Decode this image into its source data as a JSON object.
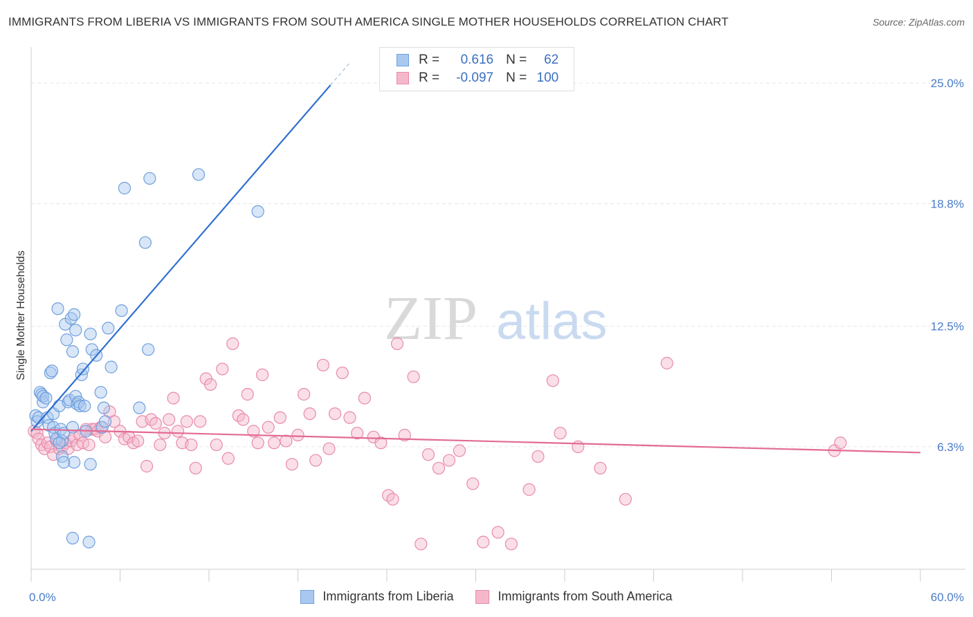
{
  "title": "IMMIGRANTS FROM LIBERIA VS IMMIGRANTS FROM SOUTH AMERICA SINGLE MOTHER HOUSEHOLDS CORRELATION CHART",
  "source": "Source: ZipAtlas.com",
  "watermark": {
    "zip": "ZIP",
    "atlas": "atlas"
  },
  "legend": {
    "r_label": "R =",
    "n_label": "N =",
    "rows": [
      {
        "r": "0.616",
        "n": "62"
      },
      {
        "r": "-0.097",
        "n": "100"
      }
    ]
  },
  "colors": {
    "liberia_fill": "#a9c8f0",
    "liberia_stroke": "#6e9fdc",
    "liberia_line": "#2f6fcf",
    "sa_fill": "#f5b8cb",
    "sa_stroke": "#e88aa9",
    "sa_line": "#e26a94",
    "tick": "#4a7cc9",
    "grid": "#e6e6e6"
  },
  "chart_data": {
    "type": "scatter",
    "title": "IMMIGRANTS FROM LIBERIA VS IMMIGRANTS FROM SOUTH AMERICA SINGLE MOTHER HOUSEHOLDS CORRELATION CHART",
    "xlabel": "",
    "ylabel": "Single Mother Households",
    "xlim": [
      0,
      60
    ],
    "ylim": [
      0,
      26.5
    ],
    "x_tick_labels": [
      "0.0%",
      "60.0%"
    ],
    "y_ticks": [
      6.3,
      12.5,
      18.8,
      25.0
    ],
    "y_tick_labels": [
      "6.3%",
      "12.5%",
      "18.8%",
      "25.0%"
    ],
    "legend_placement": "top-center",
    "series": [
      {
        "name": "Immigrants from Liberia",
        "r": 0.616,
        "n": 62,
        "trend": {
          "x0": 0,
          "y0": 7.1,
          "x1": 20.2,
          "y1": 24.9,
          "dash_to_x": 21.5
        },
        "points": [
          [
            0.3,
            7.9
          ],
          [
            0.4,
            7.6
          ],
          [
            0.5,
            7.8
          ],
          [
            0.6,
            9.1
          ],
          [
            0.7,
            9.0
          ],
          [
            0.8,
            8.6
          ],
          [
            0.8,
            8.9
          ],
          [
            1.0,
            8.8
          ],
          [
            1.1,
            7.8
          ],
          [
            1.2,
            7.4
          ],
          [
            1.3,
            10.1
          ],
          [
            1.4,
            10.2
          ],
          [
            1.5,
            8.0
          ],
          [
            1.5,
            7.3
          ],
          [
            1.6,
            7.0
          ],
          [
            1.7,
            6.7
          ],
          [
            1.8,
            13.4
          ],
          [
            1.9,
            8.4
          ],
          [
            2.0,
            7.2
          ],
          [
            2.1,
            6.6
          ],
          [
            2.1,
            5.8
          ],
          [
            2.2,
            7.0
          ],
          [
            2.3,
            12.6
          ],
          [
            2.4,
            11.8
          ],
          [
            2.5,
            8.6
          ],
          [
            2.6,
            8.7
          ],
          [
            2.7,
            12.9
          ],
          [
            2.8,
            11.2
          ],
          [
            2.8,
            7.3
          ],
          [
            2.9,
            13.1
          ],
          [
            3.0,
            12.3
          ],
          [
            3.0,
            8.9
          ],
          [
            3.1,
            8.5
          ],
          [
            3.2,
            8.6
          ],
          [
            3.3,
            8.4
          ],
          [
            3.4,
            10.0
          ],
          [
            3.5,
            10.3
          ],
          [
            3.6,
            8.4
          ],
          [
            3.7,
            7.1
          ],
          [
            4.0,
            12.1
          ],
          [
            4.1,
            11.3
          ],
          [
            4.4,
            11.0
          ],
          [
            4.7,
            9.1
          ],
          [
            4.8,
            7.3
          ],
          [
            4.9,
            8.3
          ],
          [
            5.0,
            7.6
          ],
          [
            5.2,
            12.4
          ],
          [
            5.4,
            10.4
          ],
          [
            6.1,
            13.3
          ],
          [
            6.3,
            19.6
          ],
          [
            7.3,
            8.3
          ],
          [
            7.7,
            16.8
          ],
          [
            7.9,
            11.3
          ],
          [
            8.0,
            20.1
          ],
          [
            11.3,
            20.3
          ],
          [
            15.3,
            18.4
          ],
          [
            2.9,
            5.5
          ],
          [
            4.0,
            5.4
          ],
          [
            2.8,
            1.6
          ],
          [
            3.9,
            1.4
          ],
          [
            2.2,
            5.5
          ],
          [
            1.9,
            6.5
          ]
        ]
      },
      {
        "name": "Immigrants from South America",
        "r": -0.097,
        "n": 100,
        "trend": {
          "x0": 0,
          "y0": 7.2,
          "x1": 60,
          "y1": 6.0
        },
        "points": [
          [
            0.2,
            7.1
          ],
          [
            0.4,
            7.0
          ],
          [
            0.5,
            6.7
          ],
          [
            0.7,
            6.4
          ],
          [
            0.9,
            6.2
          ],
          [
            1.1,
            6.5
          ],
          [
            1.3,
            6.3
          ],
          [
            1.5,
            5.9
          ],
          [
            1.7,
            6.6
          ],
          [
            1.9,
            6.2
          ],
          [
            2.1,
            6.3
          ],
          [
            2.3,
            6.5
          ],
          [
            2.5,
            6.2
          ],
          [
            2.7,
            6.6
          ],
          [
            2.9,
            6.8
          ],
          [
            3.1,
            6.4
          ],
          [
            3.3,
            6.9
          ],
          [
            3.5,
            6.5
          ],
          [
            3.7,
            7.2
          ],
          [
            3.9,
            6.4
          ],
          [
            4.1,
            7.2
          ],
          [
            4.3,
            7.2
          ],
          [
            4.5,
            7.1
          ],
          [
            4.7,
            7.3
          ],
          [
            5.0,
            6.8
          ],
          [
            5.3,
            8.1
          ],
          [
            5.6,
            7.6
          ],
          [
            6.0,
            7.1
          ],
          [
            6.3,
            6.7
          ],
          [
            6.6,
            6.8
          ],
          [
            6.9,
            6.5
          ],
          [
            7.2,
            6.6
          ],
          [
            7.5,
            7.6
          ],
          [
            7.8,
            5.3
          ],
          [
            8.1,
            7.7
          ],
          [
            8.4,
            7.5
          ],
          [
            8.7,
            6.4
          ],
          [
            9.0,
            7.0
          ],
          [
            9.3,
            7.7
          ],
          [
            9.6,
            8.8
          ],
          [
            9.9,
            7.1
          ],
          [
            10.2,
            6.5
          ],
          [
            10.5,
            7.6
          ],
          [
            10.8,
            6.4
          ],
          [
            11.1,
            5.2
          ],
          [
            11.4,
            7.6
          ],
          [
            11.8,
            9.8
          ],
          [
            12.1,
            9.5
          ],
          [
            12.5,
            6.4
          ],
          [
            12.9,
            10.3
          ],
          [
            13.3,
            5.7
          ],
          [
            13.6,
            11.6
          ],
          [
            14.0,
            7.9
          ],
          [
            14.3,
            7.7
          ],
          [
            14.6,
            9.0
          ],
          [
            15.0,
            7.1
          ],
          [
            15.3,
            6.5
          ],
          [
            15.6,
            10.0
          ],
          [
            16.0,
            7.3
          ],
          [
            16.4,
            6.5
          ],
          [
            16.8,
            7.8
          ],
          [
            17.2,
            6.6
          ],
          [
            17.6,
            5.4
          ],
          [
            18.0,
            6.9
          ],
          [
            18.4,
            9.0
          ],
          [
            18.8,
            8.0
          ],
          [
            19.2,
            5.6
          ],
          [
            19.7,
            10.5
          ],
          [
            20.1,
            6.2
          ],
          [
            20.5,
            8.0
          ],
          [
            21.0,
            10.1
          ],
          [
            21.5,
            7.8
          ],
          [
            22.0,
            7.0
          ],
          [
            22.5,
            8.8
          ],
          [
            23.1,
            6.8
          ],
          [
            23.6,
            6.5
          ],
          [
            24.1,
            3.8
          ],
          [
            24.4,
            3.6
          ],
          [
            24.7,
            11.6
          ],
          [
            25.2,
            6.9
          ],
          [
            25.8,
            9.9
          ],
          [
            26.3,
            1.3
          ],
          [
            26.8,
            5.9
          ],
          [
            27.5,
            5.2
          ],
          [
            28.2,
            5.6
          ],
          [
            28.9,
            6.1
          ],
          [
            29.8,
            4.4
          ],
          [
            30.5,
            1.4
          ],
          [
            31.5,
            1.9
          ],
          [
            32.4,
            1.3
          ],
          [
            33.6,
            4.1
          ],
          [
            34.2,
            5.8
          ],
          [
            35.2,
            9.7
          ],
          [
            35.7,
            7.0
          ],
          [
            36.9,
            6.3
          ],
          [
            38.4,
            5.2
          ],
          [
            40.1,
            3.6
          ],
          [
            42.9,
            10.6
          ],
          [
            54.2,
            6.1
          ],
          [
            54.6,
            6.5
          ]
        ]
      }
    ],
    "annotations": []
  }
}
